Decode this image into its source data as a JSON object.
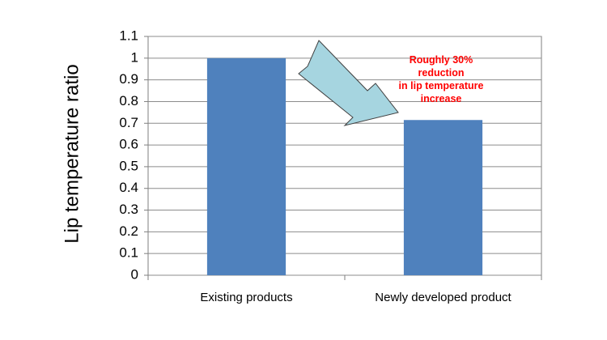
{
  "chart_data": {
    "type": "bar",
    "categories": [
      "Existing products",
      "Newly developed product"
    ],
    "values": [
      1.0,
      0.715
    ],
    "title": "",
    "xlabel": "",
    "ylabel": "Lip temperature ratio",
    "ylim": [
      0,
      1.1
    ],
    "yticks": [
      "0",
      "0.1",
      "0.2",
      "0.3",
      "0.4",
      "0.5",
      "0.6",
      "0.7",
      "0.8",
      "0.9",
      "1",
      "1.1"
    ],
    "grid": true,
    "legend": "none",
    "annotation": {
      "lines": [
        "Roughly 30%",
        "reduction",
        "in lip temperature",
        "increase"
      ],
      "color": "#ff0000"
    },
    "bar_color": "#4f81bd",
    "arrow_fill": "#a6d5e0",
    "arrow_stroke": "#404040"
  }
}
